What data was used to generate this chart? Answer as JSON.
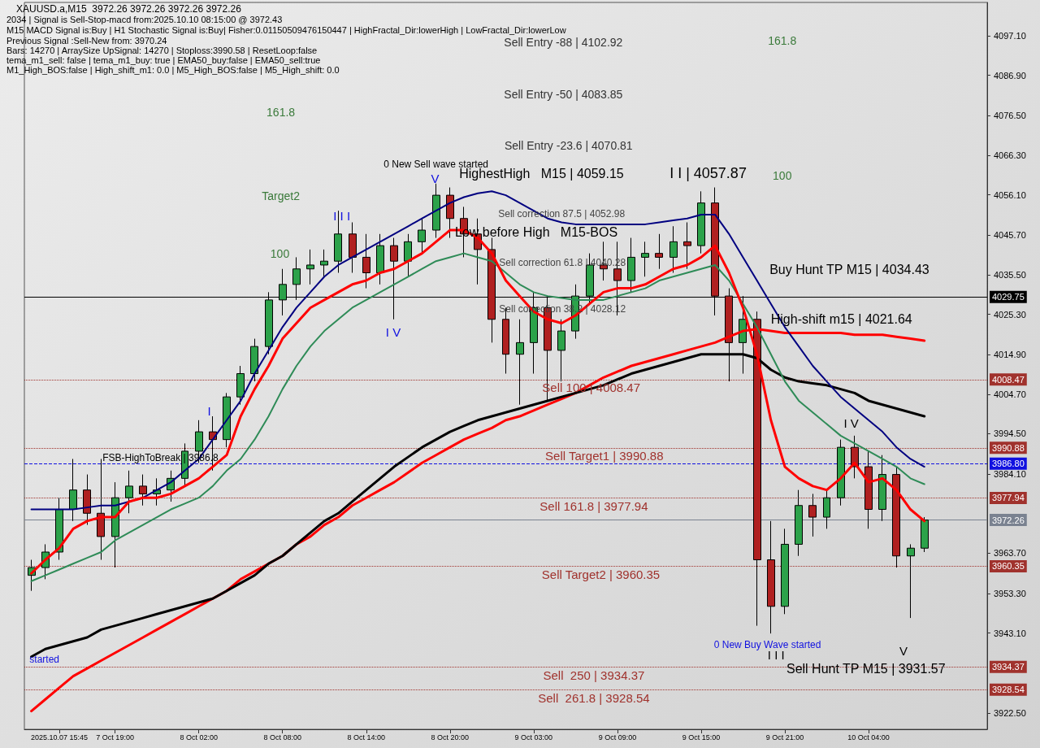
{
  "chart_data": {
    "type": "candlestick",
    "title": "XAUUSD.a,M15  3972.26 3972.26 3972.26 3972.26",
    "categories": [
      null,
      null,
      "2025.10.07 15:45",
      null,
      null,
      null,
      "7 Oct 19:00",
      null,
      null,
      null,
      null,
      null,
      "8 Oct 02:00",
      null,
      null,
      null,
      null,
      null,
      "8 Oct 08:00",
      null,
      null,
      null,
      null,
      null,
      "8 Oct 14:00",
      null,
      null,
      null,
      null,
      null,
      "8 Oct 20:00",
      null,
      null,
      null,
      null,
      null,
      "9 Oct 03:00",
      null,
      null,
      null,
      null,
      null,
      "9 Oct 09:00",
      null,
      null,
      null,
      null,
      null,
      "9 Oct 15:00",
      null,
      null,
      null,
      null,
      null,
      "9 Oct 21:00",
      null,
      null,
      null,
      null,
      null,
      "10 Oct 04:00",
      null,
      null,
      null,
      null,
      null,
      null,
      null,
      null
    ],
    "ohlc": [
      [
        3958,
        3962,
        3954,
        3960
      ],
      [
        3960,
        3966,
        3957,
        3964
      ],
      [
        3964,
        3978,
        3962,
        3975
      ],
      [
        3975,
        3988,
        3972,
        3980
      ],
      [
        3980,
        3984,
        3971,
        3974
      ],
      [
        3974,
        3988,
        3962,
        3968
      ],
      [
        3968,
        3982,
        3960,
        3978
      ],
      [
        3978,
        3985,
        3974,
        3981
      ],
      [
        3981,
        3984,
        3976,
        3979
      ],
      [
        3979,
        3983,
        3976,
        3980
      ],
      [
        3980,
        3985,
        3977,
        3983
      ],
      [
        3983,
        3992,
        3981,
        3990
      ],
      [
        3990,
        3998,
        3987,
        3995
      ],
      [
        3995,
        3999,
        3985,
        3993
      ],
      [
        3993,
        4005,
        3991,
        4004
      ],
      [
        4004,
        4012,
        4002,
        4010
      ],
      [
        4010,
        4019,
        4008,
        4017
      ],
      [
        4017,
        4031,
        4015,
        4029
      ],
      [
        4029,
        4037,
        4025,
        4033
      ],
      [
        4033,
        4040,
        4029,
        4037
      ],
      [
        4037,
        4042,
        4033,
        4038
      ],
      [
        4038,
        4042,
        4035,
        4039
      ],
      [
        4039,
        4052,
        4036,
        4046
      ],
      [
        4046,
        4049,
        4036,
        4040
      ],
      [
        4040,
        4046,
        4032,
        4036
      ],
      [
        4036,
        4046,
        4033,
        4043
      ],
      [
        4043,
        4045,
        4024,
        4039
      ],
      [
        4039,
        4046,
        4035,
        4044
      ],
      [
        4044,
        4050,
        4041,
        4047
      ],
      [
        4047,
        4059,
        4045,
        4056
      ],
      [
        4056,
        4058,
        4045,
        4050
      ],
      [
        4050,
        4053,
        4040,
        4046
      ],
      [
        4046,
        4050,
        4033,
        4042
      ],
      [
        4042,
        4045,
        4018,
        4024
      ],
      [
        4024,
        4027,
        4010,
        4015
      ],
      [
        4015,
        4024,
        4002,
        4018
      ],
      [
        4018,
        4031,
        4010,
        4027
      ],
      [
        4027,
        4030,
        4003,
        4016
      ],
      [
        4016,
        4024,
        4008,
        4021
      ],
      [
        4021,
        4033,
        4019,
        4030
      ],
      [
        4030,
        4041,
        4028,
        4038
      ],
      [
        4038,
        4044,
        4034,
        4037
      ],
      [
        4037,
        4044,
        4025,
        4034
      ],
      [
        4034,
        4045,
        4031,
        4040
      ],
      [
        4040,
        4044,
        4035,
        4041
      ],
      [
        4041,
        4046,
        4037,
        4040
      ],
      [
        4040,
        4048,
        4036,
        4044
      ],
      [
        4044,
        4049,
        4037,
        4043
      ],
      [
        4043,
        4057,
        4041,
        4054
      ],
      [
        4054,
        4058,
        4025,
        4030
      ],
      [
        4030,
        4032,
        4008,
        4018
      ],
      [
        4018,
        4030,
        4010,
        4024
      ],
      [
        4024,
        4026,
        3945,
        3962
      ],
      [
        3962,
        3972,
        3943,
        3950
      ],
      [
        3950,
        3970,
        3948,
        3966
      ],
      [
        3966,
        3980,
        3963,
        3976
      ],
      [
        3976,
        3979,
        3968,
        3973
      ],
      [
        3973,
        3980,
        3970,
        3978
      ],
      [
        3978,
        3993,
        3976,
        3991
      ],
      [
        3991,
        3994,
        3983,
        3986
      ],
      [
        3986,
        3990,
        3970,
        3975
      ],
      [
        3975,
        3989,
        3972,
        3984
      ],
      [
        3984,
        3986,
        3960,
        3963
      ],
      [
        3963,
        3966,
        3947,
        3965
      ],
      [
        3965,
        3973,
        3964,
        3972.26
      ],
      null,
      null,
      null,
      null
    ],
    "series": [
      {
        "type": "line",
        "color": "#ff0000",
        "values": [
          3923,
          3926,
          3929,
          3932,
          3934,
          3936,
          3938,
          3940,
          3942,
          3944,
          3946,
          3948,
          3950,
          3952,
          3954,
          3957,
          3959,
          3961,
          3963,
          3966,
          3968,
          3971,
          3973,
          3976,
          3978,
          3980,
          3982,
          3984.5,
          3987,
          3989,
          3991,
          3993,
          3994.5,
          3996,
          3998,
          3999,
          4000.5,
          4002,
          4003.5,
          4005,
          4007,
          4009,
          4010.5,
          4012,
          4013,
          4014,
          4015,
          4016,
          4017,
          4018,
          4019.5,
          4021,
          4021.5,
          4021,
          4020.5,
          4020.5,
          4020.5,
          4020.5,
          4020.5,
          4020,
          4020,
          4020,
          4019.5,
          4019,
          4018.5,
          null,
          null,
          null,
          null
        ]
      },
      {
        "type": "line",
        "color": "#000000",
        "values": [
          3937,
          3939,
          3940,
          3941,
          3942,
          3944,
          3945,
          3946,
          3947,
          3948,
          3949,
          3950,
          3951,
          3952,
          3954,
          3956,
          3958,
          3961,
          3963,
          3966,
          3969,
          3972,
          3974,
          3977,
          3980,
          3983,
          3986,
          3988.5,
          3991,
          3993,
          3995,
          3996.5,
          3998,
          3999,
          4000,
          4001,
          4002,
          4003,
          4004,
          4005,
          4006,
          4007,
          4008.5,
          4010,
          4011,
          4012,
          4013,
          4014,
          4015,
          4015,
          4015,
          4015,
          4014,
          4011,
          4009,
          4008,
          4007.5,
          4007,
          4006,
          4005,
          4003,
          4002,
          4001,
          4000,
          3999,
          null,
          null,
          null,
          null
        ]
      },
      {
        "type": "line",
        "color": "#2e8b57",
        "values": [
          3956.5,
          3958,
          3959.5,
          3961,
          3962.5,
          3964,
          3967,
          3969,
          3971,
          3973,
          3975,
          3976.5,
          3978,
          3981,
          3985,
          3988,
          3993,
          3999,
          4006,
          4012,
          4017,
          4021,
          4024,
          4027,
          4029,
          4031,
          4033,
          4035,
          4037,
          4039,
          4040,
          4041,
          4040,
          4039,
          4036,
          4033,
          4031,
          4030,
          4029.5,
          4029,
          4029,
          4029,
          4030,
          4031,
          4032,
          4034,
          4035,
          4036,
          4037,
          4038,
          4034,
          4028,
          4022,
          4015,
          4008,
          4003,
          4000,
          3997,
          3994,
          3992,
          3990,
          3988,
          3986,
          3983,
          3981.5,
          null,
          null,
          null,
          null
        ]
      },
      {
        "type": "line",
        "color": "#000080",
        "values": [
          3975,
          3975,
          3975,
          3975,
          3975.5,
          3976,
          3976,
          3977,
          3978,
          3980,
          3982,
          3985,
          3988,
          3993,
          3998,
          4003,
          4010,
          4016,
          4022,
          4027,
          4031,
          4035,
          4038,
          4040,
          4042,
          4044,
          4046,
          4048,
          4050,
          4052,
          4054,
          4055.5,
          4056.5,
          4057,
          4056,
          4054,
          4052,
          4050,
          4049,
          4048.5,
          4048.5,
          4048.5,
          4048.5,
          4048.5,
          4048.5,
          4049,
          4049.5,
          4050,
          4051,
          4051,
          4046,
          4040,
          4034,
          4028,
          4022,
          4017,
          4012,
          4008,
          4004,
          4001,
          3998,
          3995,
          3991,
          3988,
          3986,
          null,
          null,
          null,
          null
        ]
      },
      {
        "type": "line",
        "color": "#ff0000",
        "values": [
          3958.5,
          3962,
          3965,
          3970,
          3972,
          3973,
          3973,
          3977,
          3978,
          3978,
          3979,
          3981,
          3983,
          3986,
          3989,
          3999,
          4006,
          4012,
          4019,
          4023,
          4027,
          4029,
          4031,
          4033,
          4034,
          4036,
          4037,
          4039,
          4041,
          4044,
          4047,
          4047,
          4045,
          4041,
          4034,
          4030,
          4026,
          4024,
          4023,
          4025,
          4028,
          4031,
          4032,
          4032,
          4033,
          4035,
          4037,
          4038,
          4040,
          4043,
          4036,
          4027,
          4015,
          3998,
          3986,
          3983,
          3981,
          3980,
          3983,
          3987,
          3982,
          3983,
          3980,
          3975,
          3972,
          null,
          null,
          null,
          null
        ]
      }
    ],
    "ylim": [
      3918.3,
      4105.7
    ],
    "yticks": [
      {
        "value": 4097.1,
        "label": "4097.10"
      },
      {
        "value": 4086.9,
        "label": "4086.90"
      },
      {
        "value": 4076.5,
        "label": "4076.50"
      },
      {
        "value": 4066.3,
        "label": "4066.30"
      },
      {
        "value": 4056.1,
        "label": "4056.10"
      },
      {
        "value": 4045.7,
        "label": "4045.70"
      },
      {
        "value": 4035.5,
        "label": "4035.50"
      },
      {
        "value": 4025.3,
        "label": "4025.30"
      },
      {
        "value": 4014.9,
        "label": "4014.90"
      },
      {
        "value": 4004.7,
        "label": "4004.70"
      },
      {
        "value": 3994.5,
        "label": "3994.50"
      },
      {
        "value": 3984.1,
        "label": "3984.10"
      },
      {
        "value": 3963.7,
        "label": "3963.70"
      },
      {
        "value": 3953.3,
        "label": "3953.30"
      },
      {
        "value": 3943.1,
        "label": "3943.10"
      },
      {
        "value": 3922.5,
        "label": "3922.50"
      }
    ],
    "ref_lines": [
      {
        "axis": "y",
        "value": 4029.75,
        "label": "4029.75",
        "color": "#000000",
        "line_style": "solid"
      },
      {
        "axis": "y",
        "value": 4008.47,
        "label": "4008.47",
        "color": "#a0322d",
        "line_style": "dotted"
      },
      {
        "axis": "y",
        "value": 3990.88,
        "label": "3990.88",
        "color": "#a0322d",
        "line_style": "dotted"
      },
      {
        "axis": "y",
        "value": 3986.8,
        "label": "3986.80",
        "color": "#1010e0",
        "line_style": "dashed"
      },
      {
        "axis": "y",
        "value": 3977.94,
        "label": "3977.94",
        "color": "#a0322d",
        "line_style": "dotted"
      },
      {
        "axis": "y",
        "value": 3972.26,
        "label": "3972.26",
        "color": "#7a8290",
        "line_style": "solid"
      },
      {
        "axis": "y",
        "value": 3960.35,
        "label": "3960.35",
        "color": "#a0322d",
        "line_style": "dotted"
      },
      {
        "axis": "y",
        "value": 3934.37,
        "label": "3934.37",
        "color": "#a0322d",
        "line_style": "dotted"
      },
      {
        "axis": "y",
        "value": 3928.54,
        "label": "3928.54",
        "color": "#a0322d",
        "line_style": "dotted"
      }
    ],
    "annotations": [
      "2034 | Signal is Sell-Stop-macd from:2025.10.10 08:15:00 @ 3972.43",
      "M15 MACD Signal is:Buy | H1 Stochastic Signal is:Buy| Fisher:0.01150509476150447 | HighFractal_Dir:lowerHigh | LowFractal_Dir:lowerLow",
      "Previous Signal :Sell-New from: 3970.24",
      "Bars: 14270 | ArraySize UpSignal: 14270 | Stoploss:3990.58 | ResetLoop:false",
      "tema_m1_sell: false | tema_m1_buy: true | EMA50_buy:false | EMA50_sell:true",
      "M1_High_BOS:false | High_shift_m1: 0.0 | M5_High_BOS:false | M5_High_shift: 0.0",
      "Sell Entry -88 | 4102.92",
      "161.8",
      "Sell Entry -50 | 4083.85",
      "161.8",
      "Sell Entry -23.6 | 4070.81",
      "0 New Sell wave started",
      "HighestHigh   M15 | 4059.15",
      "I I | 4057.87",
      "100",
      "V",
      "Target2",
      "I I I",
      "Sell correction 87.5 | 4052.98",
      "Low before High   M15-BOS",
      "100",
      "Sell correction 61.8 | 4040.28",
      "Buy Hunt TP M15 | 4034.43",
      "Sell correction 38.2 | 4028.12",
      "High-shift m15 | 4021.64",
      "I V",
      "Sell 100 | 4008.47",
      "I",
      "I V",
      "FSB-HighToBreak | 3986.8",
      "Sell Target1 | 3990.88",
      "Sell 161.8 | 3977.94",
      "Sell Target2 | 3960.35",
      "0 New Buy Wave started",
      "started",
      "I I I",
      "V",
      "Sell Hunt TP M15 | 3931.57",
      "Sell  250 | 3934.37",
      "Sell  261.8 | 3928.54"
    ]
  }
}
